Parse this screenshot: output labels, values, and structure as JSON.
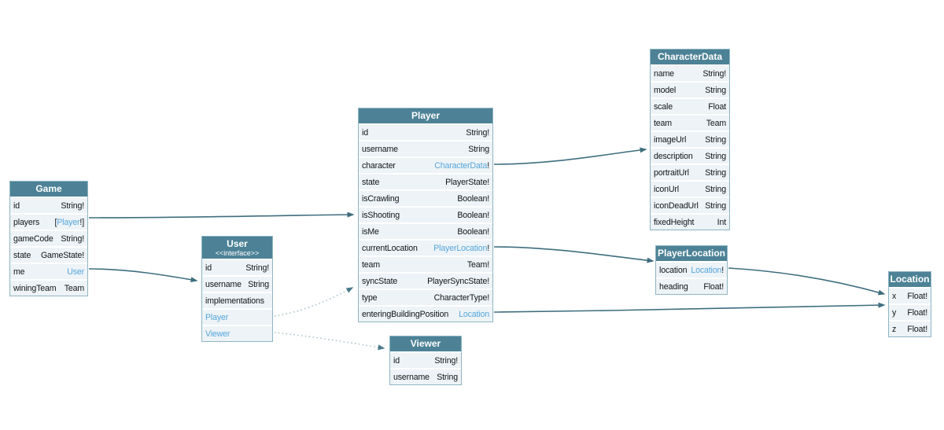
{
  "diagram": {
    "kind": "graphql-schema-diagram",
    "colors": {
      "header_bg": "#4d8296",
      "header_text": "#ffffff",
      "row_bg": "#edf3f6",
      "node_border": "#8fb5c3",
      "field_text": "#101418",
      "type_link": "#55a6db",
      "edge_solid": "#3e6e7e",
      "edge_dotted": "#a4bfc8",
      "background": "#ffffff"
    }
  },
  "tables": [
    {
      "id": "game",
      "title": "Game",
      "fields": [
        {
          "name": "id",
          "type": [
            {
              "t": "String!"
            }
          ]
        },
        {
          "name": "players",
          "type": [
            {
              "t": "["
            },
            {
              "t": "Player",
              "link": true
            },
            {
              "t": "!]"
            }
          ]
        },
        {
          "name": "gameCode",
          "type": [
            {
              "t": "String!"
            }
          ]
        },
        {
          "name": "state",
          "type": [
            {
              "t": "GameState!"
            }
          ]
        },
        {
          "name": "me",
          "type": [
            {
              "t": "User",
              "link": true
            }
          ]
        },
        {
          "name": "winingTeam",
          "type": [
            {
              "t": "Team"
            }
          ]
        }
      ]
    },
    {
      "id": "user",
      "title": "User",
      "subtitle": "<<interface>>",
      "fields": [
        {
          "name": "id",
          "type": [
            {
              "t": "String!"
            }
          ]
        },
        {
          "name": "username",
          "type": [
            {
              "t": "String"
            }
          ]
        },
        {
          "name": "implementations",
          "type": []
        },
        {
          "name": "Player",
          "name_link": true,
          "type": []
        },
        {
          "name": "Viewer",
          "name_link": true,
          "type": []
        }
      ]
    },
    {
      "id": "player",
      "title": "Player",
      "fields": [
        {
          "name": "id",
          "type": [
            {
              "t": "String!"
            }
          ]
        },
        {
          "name": "username",
          "type": [
            {
              "t": "String"
            }
          ]
        },
        {
          "name": "character",
          "type": [
            {
              "t": "CharacterData",
              "link": true
            },
            {
              "t": "!"
            }
          ]
        },
        {
          "name": "state",
          "type": [
            {
              "t": "PlayerState!"
            }
          ]
        },
        {
          "name": "isCrawling",
          "type": [
            {
              "t": "Boolean!"
            }
          ]
        },
        {
          "name": "isShooting",
          "type": [
            {
              "t": "Boolean!"
            }
          ]
        },
        {
          "name": "isMe",
          "type": [
            {
              "t": "Boolean!"
            }
          ]
        },
        {
          "name": "currentLocation",
          "type": [
            {
              "t": "PlayerLocation",
              "link": true
            },
            {
              "t": "!"
            }
          ]
        },
        {
          "name": "team",
          "type": [
            {
              "t": "Team!"
            }
          ]
        },
        {
          "name": "syncState",
          "type": [
            {
              "t": "PlayerSyncState!"
            }
          ]
        },
        {
          "name": "type",
          "type": [
            {
              "t": "CharacterType!"
            }
          ]
        },
        {
          "name": "enteringBuildingPosition",
          "type": [
            {
              "t": "Location",
              "link": true
            }
          ]
        }
      ]
    },
    {
      "id": "characterdata",
      "title": "CharacterData",
      "fields": [
        {
          "name": "name",
          "type": [
            {
              "t": "String!"
            }
          ]
        },
        {
          "name": "model",
          "type": [
            {
              "t": "String"
            }
          ]
        },
        {
          "name": "scale",
          "type": [
            {
              "t": "Float"
            }
          ]
        },
        {
          "name": "team",
          "type": [
            {
              "t": "Team"
            }
          ]
        },
        {
          "name": "imageUrl",
          "type": [
            {
              "t": "String"
            }
          ]
        },
        {
          "name": "description",
          "type": [
            {
              "t": "String"
            }
          ]
        },
        {
          "name": "portraitUrl",
          "type": [
            {
              "t": "String"
            }
          ]
        },
        {
          "name": "iconUrl",
          "type": [
            {
              "t": "String"
            }
          ]
        },
        {
          "name": "iconDeadUrl",
          "type": [
            {
              "t": "String"
            }
          ]
        },
        {
          "name": "fixedHeight",
          "type": [
            {
              "t": "Int"
            }
          ]
        }
      ]
    },
    {
      "id": "playerlocation",
      "title": "PlayerLocation",
      "fields": [
        {
          "name": "location",
          "type": [
            {
              "t": "Location",
              "link": true
            },
            {
              "t": "!"
            }
          ]
        },
        {
          "name": "heading",
          "type": [
            {
              "t": "Float!"
            }
          ]
        }
      ]
    },
    {
      "id": "location",
      "title": "Location",
      "fields": [
        {
          "name": "x",
          "type": [
            {
              "t": "Float!"
            }
          ]
        },
        {
          "name": "y",
          "type": [
            {
              "t": "Float!"
            }
          ]
        },
        {
          "name": "z",
          "type": [
            {
              "t": "Float!"
            }
          ]
        }
      ]
    },
    {
      "id": "viewer",
      "title": "Viewer",
      "fields": [
        {
          "name": "id",
          "type": [
            {
              "t": "String!"
            }
          ]
        },
        {
          "name": "username",
          "type": [
            {
              "t": "String"
            }
          ]
        }
      ]
    }
  ],
  "edges": [
    {
      "from": "Game.players",
      "to": "Player",
      "style": "solid"
    },
    {
      "from": "Game.me",
      "to": "User",
      "style": "solid"
    },
    {
      "from": "Player.character",
      "to": "CharacterData",
      "style": "solid"
    },
    {
      "from": "Player.currentLocation",
      "to": "PlayerLocation",
      "style": "solid"
    },
    {
      "from": "Player.enteringBuildingPosition",
      "to": "Location",
      "style": "solid"
    },
    {
      "from": "PlayerLocation.location",
      "to": "Location",
      "style": "solid"
    },
    {
      "from": "User.Player",
      "to": "Player",
      "style": "dotted"
    },
    {
      "from": "User.Viewer",
      "to": "Viewer",
      "style": "dotted"
    }
  ]
}
